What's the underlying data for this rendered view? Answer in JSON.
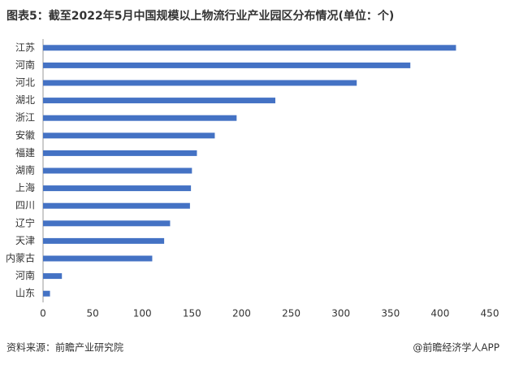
{
  "chart_data": {
    "type": "bar",
    "orientation": "horizontal",
    "title": "图表5：截至2022年5月中国规模以上物流行业产业园区分布情况(单位：个)",
    "categories": [
      "江苏",
      "河南",
      "河北",
      "湖北",
      "浙江",
      "安徽",
      "福建",
      "湖南",
      "上海",
      "四川",
      "辽宁",
      "天津",
      "内蒙古",
      "河南",
      "山东"
    ],
    "values": [
      416,
      370,
      316,
      234,
      195,
      173,
      155,
      150,
      149,
      148,
      128,
      122,
      110,
      19,
      7
    ],
    "color": "#4472c4",
    "xlim": [
      0,
      450
    ],
    "xticks": [
      0,
      50,
      100,
      150,
      200,
      250,
      300,
      350,
      400,
      450
    ],
    "source": "资料来源：前瞻产业研究院",
    "credit": "@前瞻经济学人APP"
  }
}
